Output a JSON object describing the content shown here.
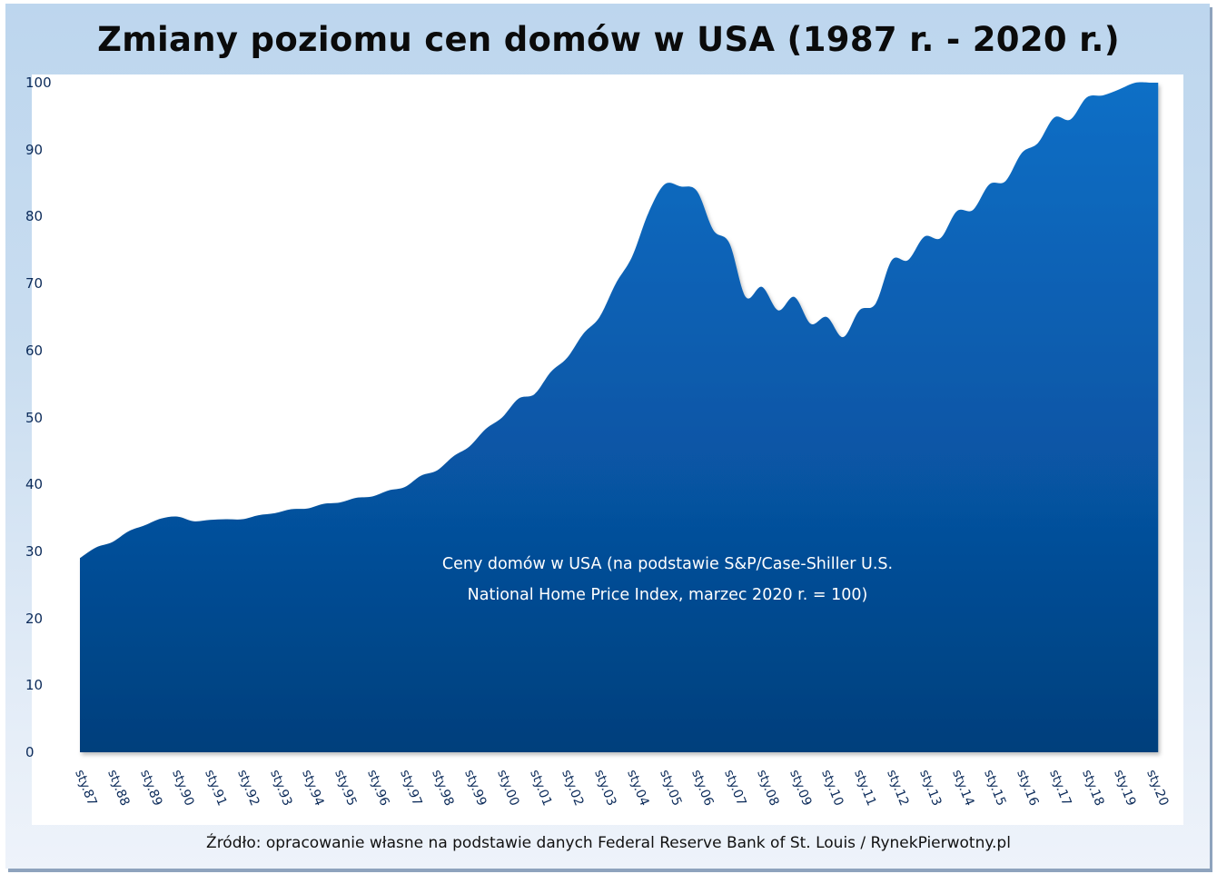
{
  "title": "Zmiany poziomu cen domów w USA (1987 r. - 2020 r.)",
  "annotation": {
    "line1": "Ceny domów w USA (na podstawie S&P/Case-Shiller U.S.",
    "line2": "National Home Price Index, marzec 2020 r. = 100)"
  },
  "source": "Źródło: opracowanie własne na podstawie danych Federal Reserve Bank of St. Louis / RynekPierwotny.pl",
  "colors": {
    "frame_top": "#bdd6ee",
    "area_top": "#0a6fc6",
    "area_bottom": "#033f7c",
    "axis_text": "#0c2b5a"
  },
  "y_ticks": [
    "0",
    "10",
    "20",
    "30",
    "40",
    "50",
    "60",
    "70",
    "80",
    "90",
    "100"
  ],
  "x_ticks": [
    "sty.87",
    "sty.88",
    "sty.89",
    "sty.90",
    "sty.91",
    "sty.92",
    "sty.93",
    "sty.94",
    "sty.95",
    "sty.96",
    "sty.97",
    "sty.98",
    "sty.99",
    "sty.00",
    "sty.01",
    "sty.02",
    "sty.03",
    "sty.04",
    "sty.05",
    "sty.06",
    "sty.07",
    "sty.08",
    "sty.09",
    "sty.10",
    "sty.11",
    "sty.12",
    "sty.13",
    "sty.14",
    "sty.15",
    "sty.16",
    "sty.17",
    "sty.18",
    "sty.19",
    "sty.20"
  ],
  "chart_data": {
    "type": "area",
    "title": "Zmiany poziomu cen domów w USA (1987 r. - 2020 r.)",
    "series_label": "Ceny domów w USA (na podstawie S&P/Case-Shiller U.S. National Home Price Index, marzec 2020 r. = 100)",
    "xlabel": "",
    "ylabel": "",
    "ylim": [
      0,
      100
    ],
    "grid": false,
    "legend": "inline annotation inside area",
    "x": [
      1987.0,
      1987.5,
      1988.0,
      1988.5,
      1989.0,
      1989.5,
      1990.0,
      1990.5,
      1991.0,
      1991.5,
      1992.0,
      1992.5,
      1993.0,
      1993.5,
      1994.0,
      1994.5,
      1995.0,
      1995.5,
      1996.0,
      1996.5,
      1997.0,
      1997.5,
      1998.0,
      1998.5,
      1999.0,
      1999.5,
      2000.0,
      2000.5,
      2001.0,
      2001.5,
      2002.0,
      2002.5,
      2003.0,
      2003.5,
      2004.0,
      2004.5,
      2005.0,
      2005.5,
      2006.0,
      2006.5,
      2007.0,
      2007.5,
      2008.0,
      2008.5,
      2009.0,
      2009.5,
      2010.0,
      2010.5,
      2011.0,
      2011.5,
      2012.0,
      2012.5,
      2013.0,
      2013.5,
      2014.0,
      2014.5,
      2015.0,
      2015.5,
      2016.0,
      2016.5,
      2017.0,
      2017.5,
      2018.0,
      2018.5,
      2019.0,
      2019.5,
      2020.0,
      2020.2
    ],
    "values": [
      29.0,
      30.6,
      31.4,
      33.0,
      33.9,
      34.9,
      35.2,
      34.5,
      34.7,
      34.8,
      34.8,
      35.4,
      35.7,
      36.3,
      36.4,
      37.1,
      37.3,
      38.0,
      38.2,
      39.1,
      39.6,
      41.3,
      42.1,
      44.2,
      45.7,
      48.3,
      50.0,
      52.8,
      53.5,
      56.8,
      58.9,
      62.5,
      65.0,
      70.0,
      74.0,
      80.5,
      84.8,
      84.5,
      83.8,
      78.0,
      76.0,
      68.0,
      69.5,
      66.0,
      68.0,
      64.0,
      65.0,
      62.0,
      66.0,
      67.0,
      73.5,
      73.5,
      77.0,
      76.8,
      80.8,
      81.0,
      84.8,
      85.3,
      89.5,
      91.0,
      94.8,
      94.5,
      97.8,
      98.1,
      99.0,
      100.0,
      100.0,
      100.0
    ]
  }
}
